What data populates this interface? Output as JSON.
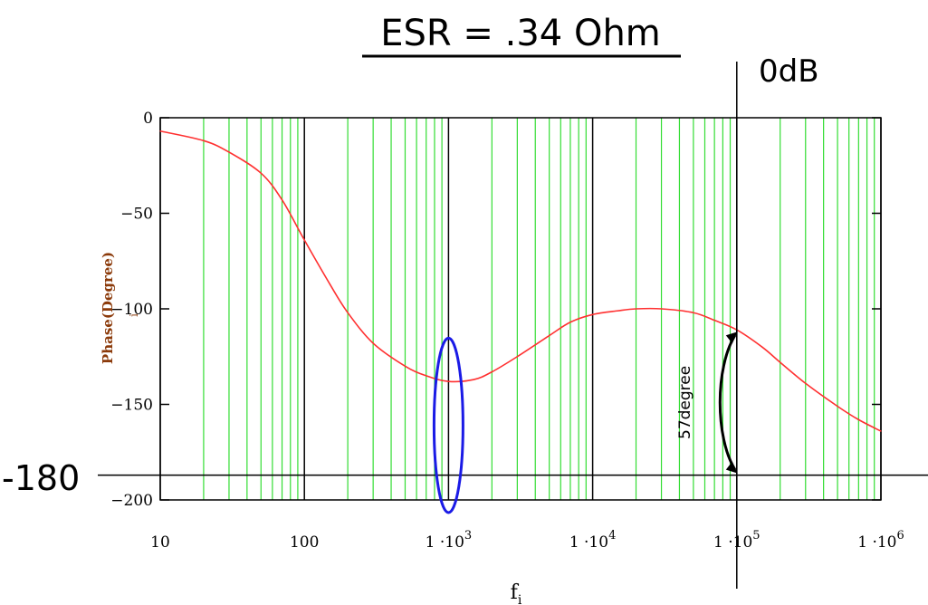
{
  "chart_data": {
    "type": "line",
    "title": "ESR = .34 Ohm",
    "xlabel": "f",
    "xlabel_subscript": "i",
    "ylabel": "Phase(Degree)",
    "ylabel_marker": "i",
    "x_scale": "log",
    "xlim": [
      10,
      1000000
    ],
    "ylim": [
      -200,
      0
    ],
    "x_ticks": [
      10,
      100,
      1000,
      10000,
      100000,
      1000000
    ],
    "x_tick_labels": [
      {
        "base": "10",
        "exp": ""
      },
      {
        "base": "100",
        "exp": ""
      },
      {
        "base": "1 ·10",
        "exp": "3"
      },
      {
        "base": "1 ·10",
        "exp": "4"
      },
      {
        "base": "1 ·10",
        "exp": "5"
      },
      {
        "base": "1 ·10",
        "exp": "6"
      }
    ],
    "y_ticks": [
      0,
      -50,
      -100,
      -150,
      -200
    ],
    "y_tick_labels": [
      "0",
      "−50",
      "−100",
      "−150",
      "−200"
    ],
    "grid": true,
    "series": [
      {
        "color": "#ff3030",
        "x": [
          10,
          20,
          30,
          50,
          70,
          100,
          150,
          200,
          300,
          500,
          700,
          1000,
          1500,
          2000,
          3000,
          5000,
          7000,
          10000,
          15000,
          20000,
          30000,
          50000,
          70000,
          100000,
          150000,
          200000,
          300000,
          500000,
          700000,
          1000000
        ],
        "y": [
          -7,
          -12,
          -18,
          -29,
          -43,
          -64,
          -87,
          -102,
          -118,
          -130,
          -135,
          -138,
          -137,
          -133,
          -125,
          -114,
          -107,
          -103,
          -101,
          -100,
          -100,
          -102,
          -106,
          -111,
          -120,
          -128,
          -139,
          -151,
          -158,
          -164
        ]
      }
    ],
    "reference_line_label": "-180",
    "reference_line_y": -187,
    "crossover_label": "0dB",
    "crossover_x": 100000,
    "margin_annotation": "57degree",
    "colors": {
      "curve": "#ff3030",
      "minor_grid": "#33dd33",
      "major_grid": "#000000",
      "ellipse": "#1a1ae6",
      "ylabel": "#8b3a0a"
    }
  }
}
